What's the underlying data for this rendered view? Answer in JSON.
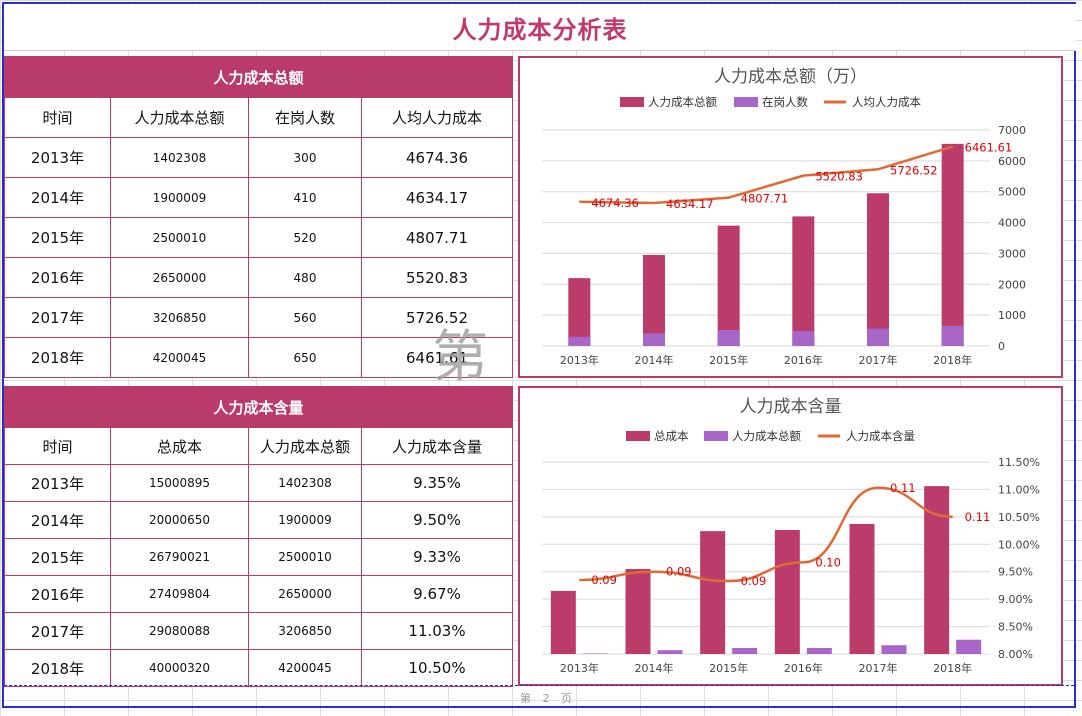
{
  "page": {
    "title": "人力成本分析表",
    "watermark": "第",
    "page_label": "第 2 页"
  },
  "table1": {
    "header": "人力成本总额",
    "columns": [
      "时间",
      "人力成本总额",
      "在岗人数",
      "人均人力成本"
    ],
    "rows": [
      [
        "2013年",
        "1402308",
        "300",
        "4674.36"
      ],
      [
        "2014年",
        "1900009",
        "410",
        "4634.17"
      ],
      [
        "2015年",
        "2500010",
        "520",
        "4807.71"
      ],
      [
        "2016年",
        "2650000",
        "480",
        "5520.83"
      ],
      [
        "2017年",
        "3206850",
        "560",
        "5726.52"
      ],
      [
        "2018年",
        "4200045",
        "650",
        "6461.61"
      ]
    ]
  },
  "table2": {
    "header": "人力成本含量",
    "columns": [
      "时间",
      "总成本",
      "人力成本总额",
      "人力成本含量"
    ],
    "rows": [
      [
        "2013年",
        "15000895",
        "1402308",
        "9.35%"
      ],
      [
        "2014年",
        "20000650",
        "1900009",
        "9.50%"
      ],
      [
        "2015年",
        "26790021",
        "2500010",
        "9.33%"
      ],
      [
        "2016年",
        "27409804",
        "2650000",
        "9.67%"
      ],
      [
        "2017年",
        "29080088",
        "3206850",
        "11.03%"
      ],
      [
        "2018年",
        "40000320",
        "4200045",
        "10.50%"
      ]
    ]
  },
  "colors": {
    "accent": "#b83b6a",
    "bar1": "#bb3b6a",
    "bar2": "#a867c8",
    "line": "#e06a35",
    "label": "#e00000"
  },
  "chart_data": [
    {
      "type": "bar",
      "title": "人力成本总额（万）",
      "categories": [
        "2013年",
        "2014年",
        "2015年",
        "2016年",
        "2017年",
        "2018年"
      ],
      "series": [
        {
          "name": "人力成本总额",
          "type": "bar",
          "values": [
            2200,
            2950,
            3900,
            4200,
            4950,
            6550
          ]
        },
        {
          "name": "在岗人数",
          "type": "bar",
          "values": [
            300,
            410,
            520,
            480,
            560,
            650
          ]
        },
        {
          "name": "人均人力成本",
          "type": "line",
          "values": [
            4674.36,
            4634.17,
            4807.71,
            5520.83,
            5726.52,
            6461.61
          ],
          "labels": [
            "4674.36",
            "4634.17",
            "4807.71",
            "5520.83",
            "5726.52",
            "6461.61"
          ]
        }
      ],
      "yticks": [
        "0",
        "1000",
        "2000",
        "3000",
        "4000",
        "5000",
        "6000",
        "7000"
      ],
      "ylim": [
        0,
        7000
      ],
      "legend": "top",
      "grid": true
    },
    {
      "type": "bar",
      "title": "人力成本含量",
      "categories": [
        "2013年",
        "2014年",
        "2015年",
        "2016年",
        "2017年",
        "2018年"
      ],
      "series": [
        {
          "name": "总成本",
          "type": "bar",
          "values": [
            0.0915,
            0.0955,
            0.1024,
            0.1026,
            0.1037,
            0.1106
          ]
        },
        {
          "name": "人力成本总额",
          "type": "bar",
          "values": [
            0.0801,
            0.0807,
            0.0811,
            0.0811,
            0.0816,
            0.0826
          ]
        },
        {
          "name": "人力成本含量",
          "type": "line",
          "values": [
            0.0935,
            0.095,
            0.0933,
            0.0967,
            0.1103,
            0.105
          ],
          "labels": [
            "0.09",
            "0.09",
            "0.09",
            "0.10",
            "0.11",
            "0.11"
          ]
        }
      ],
      "yticks": [
        "8.00%",
        "8.50%",
        "9.00%",
        "9.50%",
        "10.00%",
        "10.50%",
        "11.00%",
        "11.50%"
      ],
      "ylim": [
        0.08,
        0.115
      ],
      "legend": "top",
      "grid": true
    }
  ]
}
